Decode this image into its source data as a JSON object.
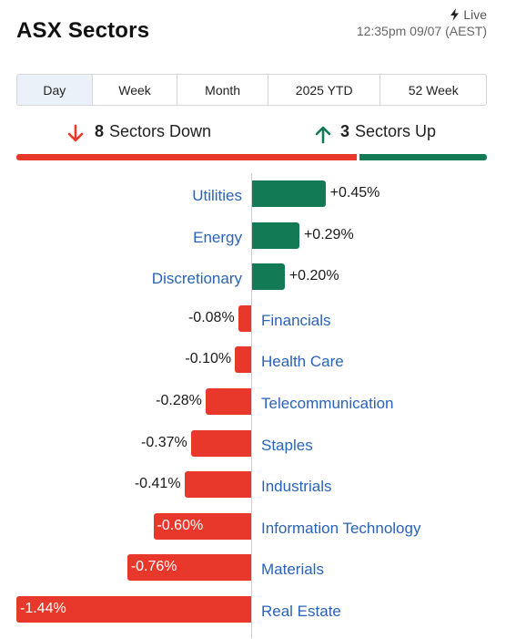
{
  "header": {
    "title": "ASX Sectors",
    "live_label": "Live",
    "timestamp": "12:35pm 09/07 (AEST)"
  },
  "tabs": [
    {
      "label": "Day",
      "active": true
    },
    {
      "label": "Week",
      "active": false
    },
    {
      "label": "Month",
      "active": false
    },
    {
      "label": "2025 YTD",
      "active": false
    },
    {
      "label": "52 Week",
      "active": false
    }
  ],
  "summary": {
    "down_count": "8",
    "down_text": "Sectors Down",
    "up_count": "3",
    "up_text": "Sectors Up"
  },
  "colors": {
    "positive": "#127a55",
    "negative": "#e8382b",
    "label": "#2a63b8"
  },
  "icons": {
    "live": "lightning-icon",
    "down": "arrow-down-icon",
    "up": "arrow-up-icon"
  },
  "chart_data": {
    "type": "bar",
    "orientation": "horizontal",
    "categories": [
      "Utilities",
      "Energy",
      "Discretionary",
      "Financials",
      "Health Care",
      "Telecommunication",
      "Staples",
      "Industrials",
      "Information Technology",
      "Materials",
      "Real Estate"
    ],
    "values": [
      0.45,
      0.29,
      0.2,
      -0.08,
      -0.1,
      -0.28,
      -0.37,
      -0.41,
      -0.6,
      -0.76,
      -1.44
    ],
    "value_labels": [
      "+0.45%",
      "+0.29%",
      "+0.20%",
      "-0.08%",
      "-0.10%",
      "-0.28%",
      "-0.37%",
      "-0.41%",
      "-0.60%",
      "-0.76%",
      "-1.44%"
    ],
    "unit": "%",
    "title": "",
    "xlabel": "",
    "ylabel": "",
    "grid": false,
    "legend": false
  }
}
